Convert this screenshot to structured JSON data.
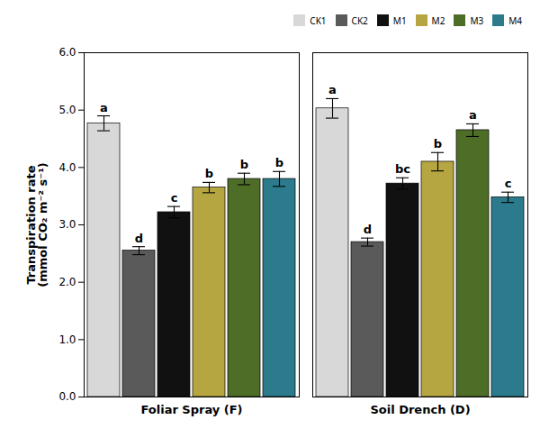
{
  "chart_data": {
    "type": "bar",
    "categories": [
      "Foliar Spray (F)",
      "Soil Drench (D)"
    ],
    "series": [
      {
        "name": "CK1",
        "color": "#d8d8d8",
        "values": [
          4.77,
          5.03
        ],
        "errors": [
          0.13,
          0.17
        ],
        "letters": [
          "a",
          "a"
        ]
      },
      {
        "name": "CK2",
        "color": "#5a5a5a",
        "values": [
          2.55,
          2.7
        ],
        "errors": [
          0.07,
          0.07
        ],
        "letters": [
          "d",
          "d"
        ]
      },
      {
        "name": "M1",
        "color": "#111111",
        "values": [
          3.22,
          3.72
        ],
        "errors": [
          0.1,
          0.1
        ],
        "letters": [
          "c",
          "bc"
        ]
      },
      {
        "name": "M2",
        "color": "#b5a642",
        "values": [
          3.65,
          4.1
        ],
        "errors": [
          0.09,
          0.16
        ],
        "letters": [
          "b",
          "b"
        ]
      },
      {
        "name": "M3",
        "color": "#4e6e28",
        "values": [
          3.8,
          4.65
        ],
        "errors": [
          0.1,
          0.11
        ],
        "letters": [
          "b",
          "a"
        ]
      },
      {
        "name": "M4",
        "color": "#2b7b8c",
        "values": [
          3.8,
          3.48
        ],
        "errors": [
          0.13,
          0.09
        ],
        "letters": [
          "b",
          "c"
        ]
      }
    ],
    "ylabel": "Transpiration rate\n(mmol CO₂ m⁻² s⁻¹)",
    "ylim": [
      0,
      6
    ],
    "yticks": [
      0,
      1,
      2,
      3,
      4,
      5,
      6
    ],
    "grid": false,
    "legend": "upper right"
  }
}
